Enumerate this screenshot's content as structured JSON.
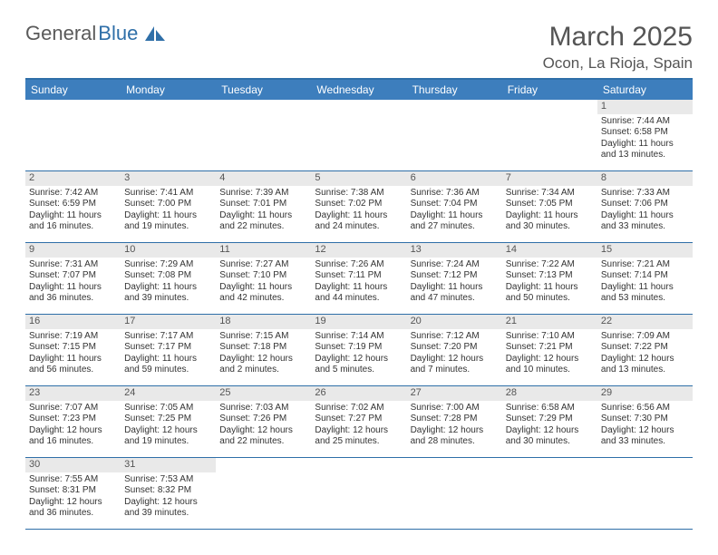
{
  "logo": {
    "text1": "General",
    "text2": "Blue"
  },
  "title": "March 2025",
  "location": "Ocon, La Rioja, Spain",
  "colors": {
    "header_bg": "#3d7ebd",
    "border": "#2f6fa8",
    "daynum_bg": "#e9e9e9",
    "text": "#333333",
    "title_text": "#555555"
  },
  "day_names": [
    "Sunday",
    "Monday",
    "Tuesday",
    "Wednesday",
    "Thursday",
    "Friday",
    "Saturday"
  ],
  "weeks": [
    [
      null,
      null,
      null,
      null,
      null,
      null,
      {
        "n": "1",
        "sr": "Sunrise: 7:44 AM",
        "ss": "Sunset: 6:58 PM",
        "dl1": "Daylight: 11 hours",
        "dl2": "and 13 minutes."
      }
    ],
    [
      {
        "n": "2",
        "sr": "Sunrise: 7:42 AM",
        "ss": "Sunset: 6:59 PM",
        "dl1": "Daylight: 11 hours",
        "dl2": "and 16 minutes."
      },
      {
        "n": "3",
        "sr": "Sunrise: 7:41 AM",
        "ss": "Sunset: 7:00 PM",
        "dl1": "Daylight: 11 hours",
        "dl2": "and 19 minutes."
      },
      {
        "n": "4",
        "sr": "Sunrise: 7:39 AM",
        "ss": "Sunset: 7:01 PM",
        "dl1": "Daylight: 11 hours",
        "dl2": "and 22 minutes."
      },
      {
        "n": "5",
        "sr": "Sunrise: 7:38 AM",
        "ss": "Sunset: 7:02 PM",
        "dl1": "Daylight: 11 hours",
        "dl2": "and 24 minutes."
      },
      {
        "n": "6",
        "sr": "Sunrise: 7:36 AM",
        "ss": "Sunset: 7:04 PM",
        "dl1": "Daylight: 11 hours",
        "dl2": "and 27 minutes."
      },
      {
        "n": "7",
        "sr": "Sunrise: 7:34 AM",
        "ss": "Sunset: 7:05 PM",
        "dl1": "Daylight: 11 hours",
        "dl2": "and 30 minutes."
      },
      {
        "n": "8",
        "sr": "Sunrise: 7:33 AM",
        "ss": "Sunset: 7:06 PM",
        "dl1": "Daylight: 11 hours",
        "dl2": "and 33 minutes."
      }
    ],
    [
      {
        "n": "9",
        "sr": "Sunrise: 7:31 AM",
        "ss": "Sunset: 7:07 PM",
        "dl1": "Daylight: 11 hours",
        "dl2": "and 36 minutes."
      },
      {
        "n": "10",
        "sr": "Sunrise: 7:29 AM",
        "ss": "Sunset: 7:08 PM",
        "dl1": "Daylight: 11 hours",
        "dl2": "and 39 minutes."
      },
      {
        "n": "11",
        "sr": "Sunrise: 7:27 AM",
        "ss": "Sunset: 7:10 PM",
        "dl1": "Daylight: 11 hours",
        "dl2": "and 42 minutes."
      },
      {
        "n": "12",
        "sr": "Sunrise: 7:26 AM",
        "ss": "Sunset: 7:11 PM",
        "dl1": "Daylight: 11 hours",
        "dl2": "and 44 minutes."
      },
      {
        "n": "13",
        "sr": "Sunrise: 7:24 AM",
        "ss": "Sunset: 7:12 PM",
        "dl1": "Daylight: 11 hours",
        "dl2": "and 47 minutes."
      },
      {
        "n": "14",
        "sr": "Sunrise: 7:22 AM",
        "ss": "Sunset: 7:13 PM",
        "dl1": "Daylight: 11 hours",
        "dl2": "and 50 minutes."
      },
      {
        "n": "15",
        "sr": "Sunrise: 7:21 AM",
        "ss": "Sunset: 7:14 PM",
        "dl1": "Daylight: 11 hours",
        "dl2": "and 53 minutes."
      }
    ],
    [
      {
        "n": "16",
        "sr": "Sunrise: 7:19 AM",
        "ss": "Sunset: 7:15 PM",
        "dl1": "Daylight: 11 hours",
        "dl2": "and 56 minutes."
      },
      {
        "n": "17",
        "sr": "Sunrise: 7:17 AM",
        "ss": "Sunset: 7:17 PM",
        "dl1": "Daylight: 11 hours",
        "dl2": "and 59 minutes."
      },
      {
        "n": "18",
        "sr": "Sunrise: 7:15 AM",
        "ss": "Sunset: 7:18 PM",
        "dl1": "Daylight: 12 hours",
        "dl2": "and 2 minutes."
      },
      {
        "n": "19",
        "sr": "Sunrise: 7:14 AM",
        "ss": "Sunset: 7:19 PM",
        "dl1": "Daylight: 12 hours",
        "dl2": "and 5 minutes."
      },
      {
        "n": "20",
        "sr": "Sunrise: 7:12 AM",
        "ss": "Sunset: 7:20 PM",
        "dl1": "Daylight: 12 hours",
        "dl2": "and 7 minutes."
      },
      {
        "n": "21",
        "sr": "Sunrise: 7:10 AM",
        "ss": "Sunset: 7:21 PM",
        "dl1": "Daylight: 12 hours",
        "dl2": "and 10 minutes."
      },
      {
        "n": "22",
        "sr": "Sunrise: 7:09 AM",
        "ss": "Sunset: 7:22 PM",
        "dl1": "Daylight: 12 hours",
        "dl2": "and 13 minutes."
      }
    ],
    [
      {
        "n": "23",
        "sr": "Sunrise: 7:07 AM",
        "ss": "Sunset: 7:23 PM",
        "dl1": "Daylight: 12 hours",
        "dl2": "and 16 minutes."
      },
      {
        "n": "24",
        "sr": "Sunrise: 7:05 AM",
        "ss": "Sunset: 7:25 PM",
        "dl1": "Daylight: 12 hours",
        "dl2": "and 19 minutes."
      },
      {
        "n": "25",
        "sr": "Sunrise: 7:03 AM",
        "ss": "Sunset: 7:26 PM",
        "dl1": "Daylight: 12 hours",
        "dl2": "and 22 minutes."
      },
      {
        "n": "26",
        "sr": "Sunrise: 7:02 AM",
        "ss": "Sunset: 7:27 PM",
        "dl1": "Daylight: 12 hours",
        "dl2": "and 25 minutes."
      },
      {
        "n": "27",
        "sr": "Sunrise: 7:00 AM",
        "ss": "Sunset: 7:28 PM",
        "dl1": "Daylight: 12 hours",
        "dl2": "and 28 minutes."
      },
      {
        "n": "28",
        "sr": "Sunrise: 6:58 AM",
        "ss": "Sunset: 7:29 PM",
        "dl1": "Daylight: 12 hours",
        "dl2": "and 30 minutes."
      },
      {
        "n": "29",
        "sr": "Sunrise: 6:56 AM",
        "ss": "Sunset: 7:30 PM",
        "dl1": "Daylight: 12 hours",
        "dl2": "and 33 minutes."
      }
    ],
    [
      {
        "n": "30",
        "sr": "Sunrise: 7:55 AM",
        "ss": "Sunset: 8:31 PM",
        "dl1": "Daylight: 12 hours",
        "dl2": "and 36 minutes."
      },
      {
        "n": "31",
        "sr": "Sunrise: 7:53 AM",
        "ss": "Sunset: 8:32 PM",
        "dl1": "Daylight: 12 hours",
        "dl2": "and 39 minutes."
      },
      null,
      null,
      null,
      null,
      null
    ]
  ]
}
